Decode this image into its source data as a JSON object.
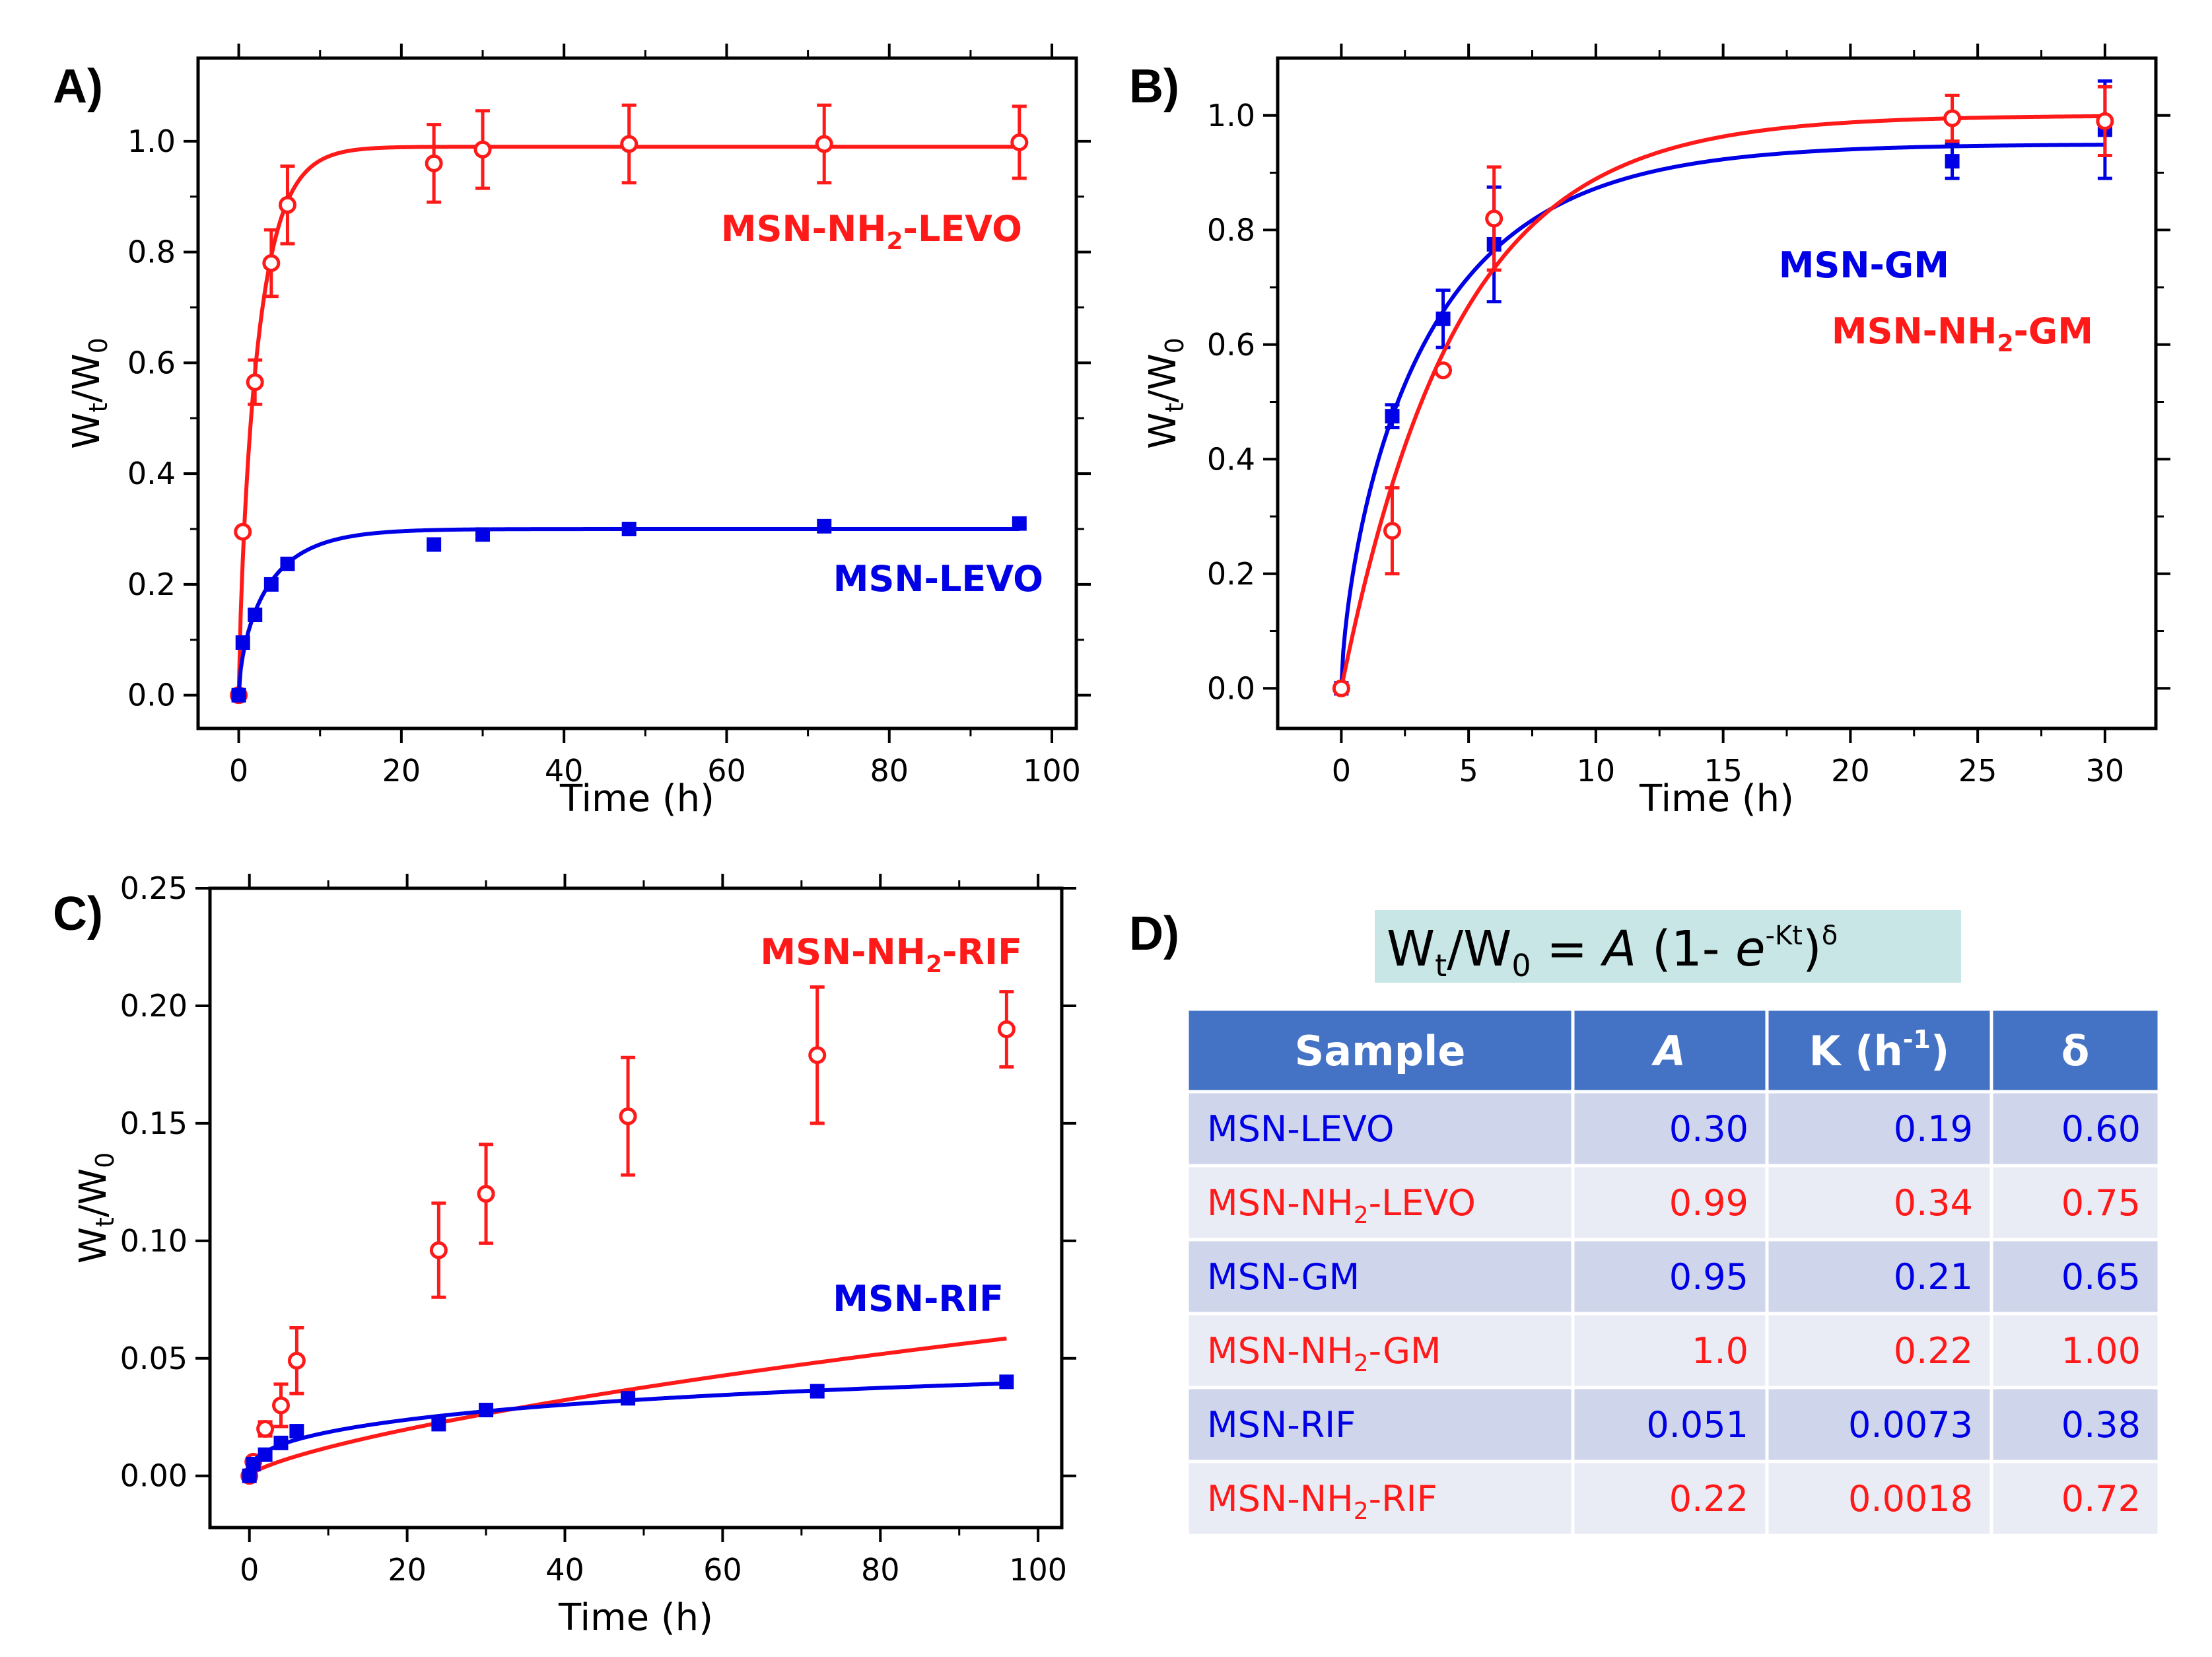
{
  "colors": {
    "red": "#ff1a1a",
    "blue": "#0000e6",
    "header": "#4472c4",
    "row_dark": "#cfd5ea",
    "row_light": "#e9ebf5",
    "equation_bg": "#c8e6e6"
  },
  "chart_data": [
    {
      "panel": "A)",
      "type": "scatter",
      "xlabel": "Time (h)",
      "ylabel": "Wt/W0",
      "xlim": [
        -5,
        103
      ],
      "ylim": [
        -0.06,
        1.15
      ],
      "xticks": [
        "0",
        "20",
        "40",
        "60",
        "80",
        "100"
      ],
      "xtick_values": [
        0,
        20,
        40,
        60,
        80,
        100
      ],
      "yticks": [
        "0.0",
        "0.2",
        "0.4",
        "0.6",
        "0.8",
        "1.0"
      ],
      "ytick_values": [
        0,
        0.2,
        0.4,
        0.6,
        0.8,
        1.0
      ],
      "series": [
        {
          "name": "MSN-NH2-LEVO",
          "label_main": "MSN-NH",
          "label_sub": "2",
          "label_tail": "-LEVO",
          "color": "red",
          "marker": "open-circle",
          "x": [
            0,
            0.5,
            2,
            4,
            6,
            24,
            30,
            48,
            72,
            96
          ],
          "y": [
            0.0,
            0.295,
            0.565,
            0.78,
            0.885,
            0.96,
            0.985,
            0.995,
            0.995,
            0.998
          ],
          "err": [
            0,
            0,
            0.04,
            0.06,
            0.07,
            0.07,
            0.07,
            0.07,
            0.07,
            0.065
          ],
          "fit": {
            "A": 0.99,
            "K": 0.34,
            "delta": 0.75
          }
        },
        {
          "name": "MSN-LEVO",
          "label_main": "MSN-LEVO",
          "label_sub": "",
          "label_tail": "",
          "color": "blue",
          "marker": "filled-square",
          "x": [
            0,
            0.5,
            2,
            4,
            6,
            24,
            30,
            48,
            72,
            96
          ],
          "y": [
            0.0,
            0.095,
            0.145,
            0.2,
            0.237,
            0.272,
            0.29,
            0.3,
            0.305,
            0.31
          ],
          "err": [
            0,
            0,
            0,
            0,
            0,
            0,
            0,
            0,
            0,
            0
          ],
          "fit": {
            "A": 0.3,
            "K": 0.19,
            "delta": 0.6
          }
        }
      ]
    },
    {
      "panel": "B)",
      "type": "scatter",
      "xlabel": "Time (h)",
      "ylabel": "Wt/W0",
      "xlim": [
        -2.5,
        32
      ],
      "ylim": [
        -0.07,
        1.1
      ],
      "xticks": [
        "0",
        "5",
        "10",
        "15",
        "20",
        "25",
        "30"
      ],
      "xtick_values": [
        0,
        5,
        10,
        15,
        20,
        25,
        30
      ],
      "yticks": [
        "0.0",
        "0.2",
        "0.4",
        "0.6",
        "0.8",
        "1.0"
      ],
      "ytick_values": [
        0,
        0.2,
        0.4,
        0.6,
        0.8,
        1.0
      ],
      "series": [
        {
          "name": "MSN-GM",
          "label_main": "MSN-GM",
          "label_sub": "",
          "label_tail": "",
          "color": "blue",
          "marker": "filled-square",
          "x": [
            0,
            2,
            4,
            6,
            24,
            30
          ],
          "y": [
            0.0,
            0.475,
            0.645,
            0.775,
            0.92,
            0.975
          ],
          "err": [
            0,
            0.02,
            0.05,
            0.1,
            0.03,
            0.085
          ],
          "fit": {
            "A": 0.95,
            "K": 0.21,
            "delta": 0.65
          }
        },
        {
          "name": "MSN-NH2-GM",
          "label_main": "MSN-NH",
          "label_sub": "2",
          "label_tail": "-GM",
          "color": "red",
          "marker": "open-circle",
          "x": [
            0,
            2,
            4,
            6,
            24,
            30
          ],
          "y": [
            0.0,
            0.275,
            0.555,
            0.82,
            0.995,
            0.99
          ],
          "err": [
            0,
            0.075,
            0,
            0.09,
            0.04,
            0.06
          ],
          "fit": {
            "A": 1.0,
            "K": 0.22,
            "delta": 1.0
          }
        }
      ]
    },
    {
      "panel": "C)",
      "type": "scatter",
      "xlabel": "Time (h)",
      "ylabel": "Wt/W0",
      "xlim": [
        -5,
        103
      ],
      "ylim": [
        -0.022,
        0.25
      ],
      "xticks": [
        "0",
        "20",
        "40",
        "60",
        "80",
        "100"
      ],
      "xtick_values": [
        0,
        20,
        40,
        60,
        80,
        100
      ],
      "yticks": [
        "0.00",
        "0.05",
        "0.10",
        "0.15",
        "0.20",
        "0.25"
      ],
      "ytick_values": [
        0,
        0.05,
        0.1,
        0.15,
        0.2,
        0.25
      ],
      "series": [
        {
          "name": "MSN-NH2-RIF",
          "label_main": "MSN-NH",
          "label_sub": "2",
          "label_tail": "-RIF",
          "color": "red",
          "marker": "open-circle",
          "x": [
            0,
            0.5,
            2,
            4,
            6,
            24,
            30,
            48,
            72,
            96
          ],
          "y": [
            0.0,
            0.006,
            0.02,
            0.03,
            0.049,
            0.096,
            0.12,
            0.153,
            0.179,
            0.19
          ],
          "err": [
            0,
            0,
            0.003,
            0.009,
            0.014,
            0.02,
            0.021,
            0.025,
            0.029,
            0.016
          ],
          "fit": {
            "A": 0.22,
            "K": 0.0018,
            "delta": 0.72
          }
        },
        {
          "name": "MSN-RIF",
          "label_main": "MSN-RIF",
          "label_sub": "",
          "label_tail": "",
          "color": "blue",
          "marker": "filled-square",
          "x": [
            0,
            0.5,
            2,
            4,
            6,
            24,
            30,
            48,
            72,
            96
          ],
          "y": [
            0.0,
            0.005,
            0.009,
            0.014,
            0.019,
            0.022,
            0.028,
            0.033,
            0.036,
            0.04
          ],
          "err": [
            0,
            0,
            0,
            0,
            0,
            0,
            0,
            0,
            0,
            0
          ],
          "fit": {
            "A": 0.051,
            "K": 0.0073,
            "delta": 0.38
          }
        }
      ]
    }
  ],
  "panel_d": {
    "label": "D)",
    "equation": {
      "lhs_w": "W",
      "lhs_sub": "t",
      "slash": "/W",
      "lhs_sub0": "0",
      "mid": " = ",
      "A": "A",
      "paren": " (1- ",
      "e": "e",
      "exp": "-Kt",
      "close": ")",
      "delta": "δ"
    },
    "headers": [
      "Sample",
      "A",
      "K (h",
      "δ"
    ],
    "header_k_sup": "-1",
    "header_k_close": ")",
    "rows": [
      {
        "main": "MSN-LEVO",
        "sub": "",
        "tail": "",
        "color": "blue",
        "A": "0.30",
        "K": "0.19",
        "delta": "0.60"
      },
      {
        "main": "MSN-NH",
        "sub": "2",
        "tail": "-LEVO",
        "color": "red",
        "A": "0.99",
        "K": "0.34",
        "delta": "0.75"
      },
      {
        "main": "MSN-GM",
        "sub": "",
        "tail": "",
        "color": "blue",
        "A": "0.95",
        "K": "0.21",
        "delta": "0.65"
      },
      {
        "main": "MSN-NH",
        "sub": "2",
        "tail": "-GM",
        "color": "red",
        "A": "1.0",
        "K": "0.22",
        "delta": "1.00"
      },
      {
        "main": "MSN-RIF",
        "sub": "",
        "tail": "",
        "color": "blue",
        "A": "0.051",
        "K": "0.0073",
        "delta": "0.38"
      },
      {
        "main": "MSN-NH",
        "sub": "2",
        "tail": "-RIF",
        "color": "red",
        "A": "0.22",
        "K": "0.0018",
        "delta": "0.72"
      }
    ]
  }
}
